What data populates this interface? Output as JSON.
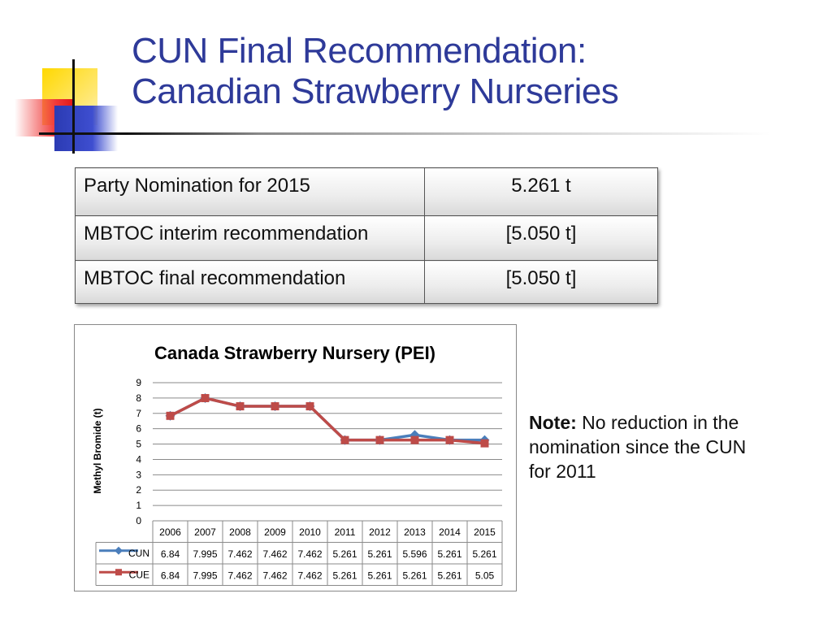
{
  "slide": {
    "title_line1": "CUN Final Recommendation:",
    "title_line2": "Canadian Strawberry Nurseries"
  },
  "summary_table": [
    {
      "label": "Party Nomination for 2015",
      "value": "5.261 t"
    },
    {
      "label": "MBTOC interim recommendation",
      "value": "[5.050 t]"
    },
    {
      "label": "MBTOC final recommendation",
      "value": "[5.050 t]"
    }
  ],
  "note": {
    "label": "Note:",
    "text": " No reduction in the nomination since the CUN for 2011"
  },
  "colors": {
    "title": "#2e3a99",
    "cun": "#4a7ebb",
    "cue": "#be4b48"
  },
  "chart_data": {
    "type": "line",
    "title": "Canada Strawberry Nursery (PEI)",
    "ylabel": "Methyl Bromide (t)",
    "xlabel": "",
    "ylim": [
      0,
      9
    ],
    "yticks": [
      "0",
      "1",
      "2",
      "3",
      "4",
      "5",
      "6",
      "7",
      "8",
      "9"
    ],
    "grid": true,
    "categories": [
      "2006",
      "2007",
      "2008",
      "2009",
      "2010",
      "2011",
      "2012",
      "2013",
      "2014",
      "2015"
    ],
    "series": [
      {
        "name": "CUN",
        "color": "#4a7ebb",
        "marker": "diamond",
        "values": [
          6.84,
          7.995,
          7.462,
          7.462,
          7.462,
          5.261,
          5.261,
          5.596,
          5.261,
          5.261
        ],
        "labels": [
          "6.84",
          "7.995",
          "7.462",
          "7.462",
          "7.462",
          "5.261",
          "5.261",
          "5.596",
          "5.261",
          "5.261"
        ]
      },
      {
        "name": "CUE",
        "color": "#be4b48",
        "marker": "square",
        "values": [
          6.84,
          7.995,
          7.462,
          7.462,
          7.462,
          5.261,
          5.261,
          5.261,
          5.261,
          5.05
        ],
        "labels": [
          "6.84",
          "7.995",
          "7.462",
          "7.462",
          "7.462",
          "5.261",
          "5.261",
          "5.261",
          "5.261",
          "5.05"
        ]
      }
    ],
    "legend": "data-table-below"
  }
}
